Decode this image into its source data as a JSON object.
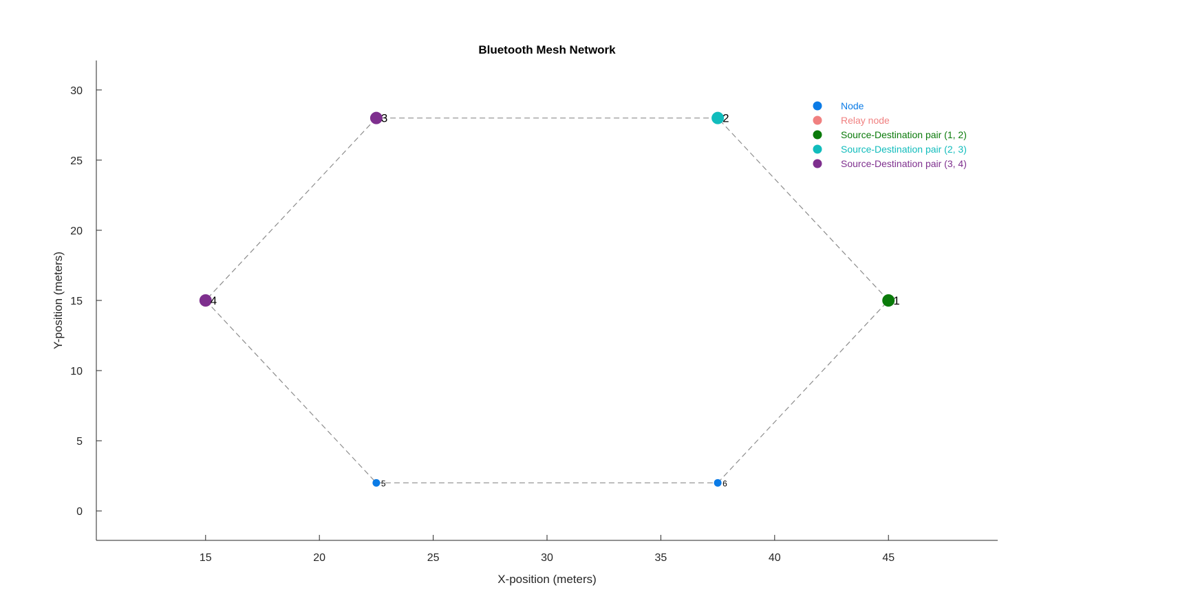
{
  "chart_data": {
    "type": "scatter",
    "title": "Bluetooth Mesh Network",
    "xlabel": "X-position (meters)",
    "ylabel": "Y-position (meters)",
    "xlim": [
      10.2,
      49.8
    ],
    "ylim": [
      -2.1,
      32.1
    ],
    "xticks": [
      15,
      20,
      25,
      30,
      35,
      40,
      45
    ],
    "yticks": [
      0,
      5,
      10,
      15,
      20,
      25,
      30
    ],
    "grid": false,
    "legend_position": "top-right",
    "nodes": [
      {
        "id": "1",
        "x": 45,
        "y": 15,
        "color": "#0a7a0a",
        "big": true
      },
      {
        "id": "2",
        "x": 37.5,
        "y": 28,
        "color": "#11bcbc",
        "big": true
      },
      {
        "id": "3",
        "x": 22.5,
        "y": 28,
        "color": "#7e2f8e",
        "big": true
      },
      {
        "id": "4",
        "x": 15,
        "y": 15,
        "color": "#7e2f8e",
        "big": true
      },
      {
        "id": "5",
        "x": 22.5,
        "y": 2,
        "color": "#0b7be6",
        "big": false
      },
      {
        "id": "6",
        "x": 37.5,
        "y": 2,
        "color": "#0b7be6",
        "big": false
      }
    ],
    "links": [
      [
        "1",
        "2"
      ],
      [
        "2",
        "3"
      ],
      [
        "3",
        "4"
      ],
      [
        "4",
        "5"
      ],
      [
        "5",
        "6"
      ],
      [
        "6",
        "1"
      ]
    ],
    "legend": [
      {
        "label": "Node",
        "color": "#0b7be6"
      },
      {
        "label": "Relay node",
        "color": "#f08080"
      },
      {
        "label": "Source-Destination pair (1, 2)",
        "color": "#0a7a0a"
      },
      {
        "label": "Source-Destination pair (2, 3)",
        "color": "#11bcbc"
      },
      {
        "label": "Source-Destination pair (3, 4)",
        "color": "#7e2f8e"
      }
    ]
  }
}
